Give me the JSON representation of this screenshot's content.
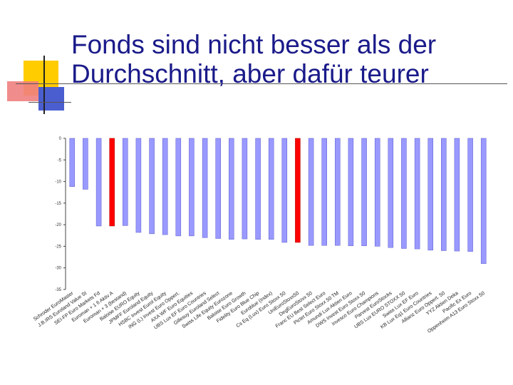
{
  "title": {
    "line1": "Fonds sind nicht besser als der",
    "line2": "Durchschnitt, aber dafür teurer"
  },
  "colors": {
    "normal_bar": "#9999ff",
    "highlight_bar": "#ff0000",
    "title": "#1a1a8a"
  },
  "chart_data": {
    "type": "bar",
    "title": "",
    "xlabel": "",
    "ylabel": "",
    "ylim": [
      -35,
      0
    ],
    "yticks": [
      "0",
      "-5",
      "-10",
      "-15",
      "-20",
      "-25",
      "-30",
      "-35"
    ],
    "grid": false,
    "categories": [
      "Schroder EuroMaster",
      "J.B.IRS Euroland Value St",
      "SEI-FP Euro Markets Fd",
      "Euroman + 1 6 Aktiv A",
      "Euroman + 3 (bestand)",
      "Baloise EURO Equity",
      "JPMFF Euroland Equity",
      "HSBC Invest Eurol Equity",
      "ING (L) Invest Euro Oppert.",
      "AXA WF Euro Equities",
      "UBS Lux EF Euro Countries",
      "Gillesuy Euroland Select",
      "Swiss Life Equity Eurozone",
      "Baloise Euro Growth",
      "Fidelity Euro Blue Chip",
      "Euroblue (Index)",
      "Cs Eq (Lux) Euro Stoxx 50",
      "UniEuroStoxx50",
      "DegEuroStoxx 50",
      "Franc EU Best Select Euro",
      "Pictet Euro Stoxx 50 TM",
      "Amundi Lux Aktien Euro",
      "DWS Invest Euro Stoxx 50",
      "Invesco Euro Champions",
      "Parvest EuroStocks",
      "UBS Lux EURO STOXX 50",
      "Swiss Lux EF Euro",
      "KB Lux Eq1 Euro Countries",
      "Allianz Euro Oppert. 50",
      "YYZ Aktien Deka",
      "Pacific Ex Euro",
      "Oppenheim A13 Euro Stoxx 50"
    ],
    "values": [
      -11.2,
      -11.8,
      -20.3,
      -20.3,
      -20.2,
      -21.8,
      -22.1,
      -22.3,
      -22.6,
      -22.6,
      -23.0,
      -23.2,
      -23.4,
      -23.3,
      -23.4,
      -23.4,
      -24.1,
      -24.1,
      -24.8,
      -24.8,
      -24.8,
      -24.9,
      -24.9,
      -25.0,
      -25.3,
      -25.5,
      -25.6,
      -25.9,
      -26.0,
      -26.1,
      -26.2,
      -29.0
    ],
    "highlight": [
      false,
      false,
      false,
      true,
      false,
      false,
      false,
      false,
      false,
      false,
      false,
      false,
      false,
      false,
      false,
      false,
      false,
      true,
      false,
      false,
      false,
      false,
      false,
      false,
      false,
      false,
      false,
      false,
      false,
      false,
      false,
      false
    ]
  }
}
